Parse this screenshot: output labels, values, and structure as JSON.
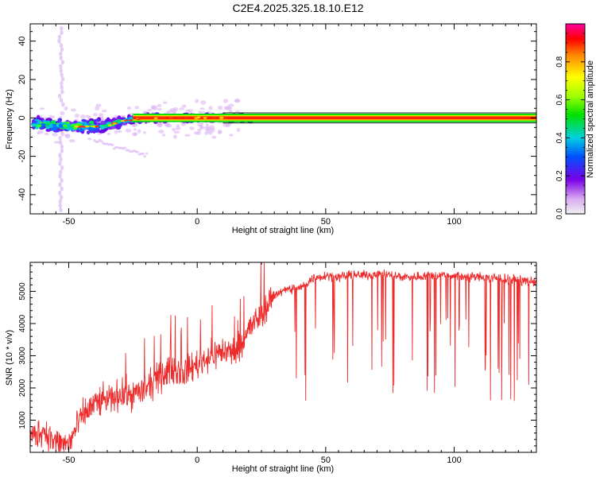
{
  "title": "C2E4.2025.325.18.10.E12",
  "chart_data": [
    {
      "type": "heatmap",
      "xlabel": "Height of straight line (km)",
      "ylabel": "Frequency (Hz)",
      "xlim": [
        -65,
        132
      ],
      "ylim": [
        -50,
        49
      ],
      "xticks": [
        -50,
        0,
        50,
        100
      ],
      "yticks": [
        -40,
        -20,
        0,
        20,
        40
      ],
      "band_center_hz": [
        {
          "x": -65,
          "y": -3
        },
        {
          "x": -60,
          "y": -3
        },
        {
          "x": -55,
          "y": -4
        },
        {
          "x": -50,
          "y": -4.5
        },
        {
          "x": -45,
          "y": -4.5
        },
        {
          "x": -40,
          "y": -4.5
        },
        {
          "x": -35,
          "y": -4
        },
        {
          "x": -30,
          "y": -2
        },
        {
          "x": -25,
          "y": -1
        },
        {
          "x": -20,
          "y": 0
        },
        {
          "x": 0,
          "y": 0
        },
        {
          "x": 132,
          "y": 0
        }
      ],
      "colorbar": {
        "label": "Normalized spectral amplitude",
        "range": [
          0,
          1
        ],
        "ticks": [
          "0.0",
          "0.2",
          "0.4",
          "0.6",
          "0.8"
        ]
      }
    },
    {
      "type": "line",
      "xlabel": "Height of straight line (km)",
      "ylabel": "SNR (10 * v/v)",
      "xlim": [
        -65,
        132
      ],
      "ylim": [
        0,
        5900
      ],
      "xticks": [
        -50,
        0,
        50,
        100
      ],
      "yticks": [
        1000,
        2000,
        3000,
        4000,
        5000
      ],
      "series": [
        {
          "name": "SNR",
          "color": "#ee2b2b",
          "x": [
            -65,
            -60,
            -55,
            -50,
            -45,
            -40,
            -35,
            -30,
            -25,
            -20,
            -15,
            -10,
            -5,
            0,
            5,
            10,
            15,
            20,
            25,
            30,
            35,
            40,
            45,
            50,
            55,
            60,
            65,
            70,
            75,
            80,
            85,
            90,
            95,
            100,
            105,
            110,
            115,
            120,
            125,
            130
          ],
          "values": [
            450,
            700,
            300,
            250,
            1100,
            1500,
            1650,
            1800,
            1800,
            1950,
            2300,
            2600,
            2500,
            2750,
            3000,
            3150,
            3100,
            3800,
            4300,
            4900,
            5050,
            5100,
            5400,
            5500,
            5450,
            5500,
            5500,
            5550,
            5500,
            5450,
            5450,
            5500,
            5500,
            5500,
            5450,
            5450,
            5400,
            5400,
            5350,
            5300
          ]
        }
      ]
    }
  ]
}
